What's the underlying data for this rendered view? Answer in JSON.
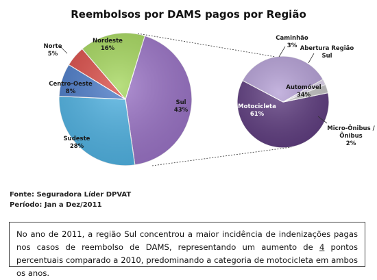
{
  "chart_data": [
    {
      "type": "pie",
      "title": "Reembolsos por DAMS pagos por Região",
      "categories": [
        "Sul",
        "Sudeste",
        "Centro-Oeste",
        "Norte",
        "Nordeste"
      ],
      "values": [
        43,
        28,
        8,
        5,
        16
      ],
      "value_labels": [
        "43%",
        "28%",
        "8%",
        "5%",
        "16%"
      ],
      "colors": [
        "#9a73c6",
        "#4fb2e2",
        "#4a7ac7",
        "#d94b46",
        "#a4d65c"
      ]
    },
    {
      "type": "pie",
      "title": "Abertura Região Sul",
      "categories": [
        "Motocicleta",
        "Automóvel",
        "Micro-Ônibus / Ônibus",
        "Caminhão"
      ],
      "values": [
        61,
        34,
        2,
        3
      ],
      "value_labels": [
        "61%",
        "34%",
        "2%",
        "3%"
      ],
      "colors": [
        "#5f3d80",
        "#b5a0d6",
        "#e0d6ee",
        "#c4c4c4"
      ]
    }
  ],
  "source_line": "Fonte: Seguradora Líder DPVAT",
  "period_line": "Período: Jan a Dez/2011",
  "note": {
    "before": "No ano de 2011, a região Sul concentrou a maior incidência de indenizações pagas nos casos de reembolso de DAMS, representando um aumento de ",
    "highlight": "4",
    "after": " pontos percentuais comparado a 2010, predominando a categoria de motocicleta em ambos os anos."
  }
}
